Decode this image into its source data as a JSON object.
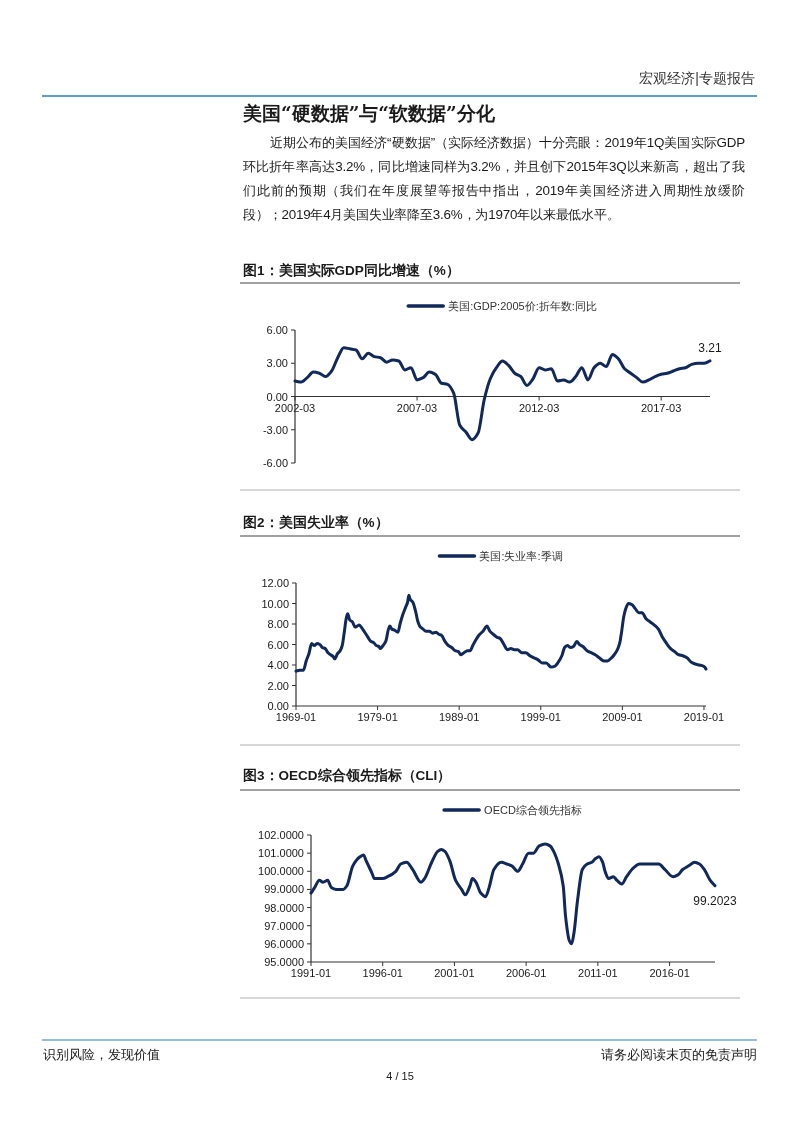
{
  "chart_data": [
    {
      "type": "line",
      "title": "图1：美国实际GDP同比增速（%）",
      "legend": "top",
      "annotations": [
        "宏观经济|专题报告",
        "美国“硬数据”与“软数据”分化",
        "近期公布的美国经济“硬数据”（实际经济数据）十分亮眼：2019年1Q美国实际GDP环比折年率高达3.2%，同比增速同样为3.2%，并且创下2015年3Q以来新高，超出了我们此前的预期（我们在年度展望等报告中指出，2019年美国经济进入周期性放缓阶段）；2019年4月美国失业率降至3.6%，为1970年以来最低水平。"
      ],
      "x": [
        "2002-03",
        "2002-06",
        "2002-09",
        "2002-12",
        "2003-03",
        "2003-06",
        "2003-09",
        "2003-12",
        "2004-03",
        "2004-06",
        "2004-09",
        "2004-12",
        "2005-03",
        "2005-06",
        "2005-09",
        "2005-12",
        "2006-03",
        "2006-06",
        "2006-09",
        "2006-12",
        "2007-03",
        "2007-06",
        "2007-09",
        "2007-12",
        "2008-03",
        "2008-06",
        "2008-09",
        "2008-12",
        "2009-03",
        "2009-06",
        "2009-09",
        "2009-12",
        "2010-03",
        "2010-06",
        "2010-09",
        "2010-12",
        "2011-03",
        "2011-06",
        "2011-09",
        "2011-12",
        "2012-03",
        "2012-06",
        "2012-09",
        "2012-12",
        "2013-03",
        "2013-06",
        "2013-09",
        "2013-12",
        "2014-03",
        "2014-06",
        "2014-09",
        "2014-12",
        "2015-03",
        "2015-06",
        "2015-09",
        "2015-12",
        "2016-03",
        "2016-06",
        "2016-09",
        "2016-12",
        "2017-03",
        "2017-06",
        "2017-09",
        "2017-12",
        "2018-03",
        "2018-06",
        "2018-09",
        "2018-12",
        "2019-03"
      ],
      "series": [
        {
          "name": "美国:GDP:2005价:折年数:同比",
          "color": "#10295a",
          "values": [
            1.4,
            1.3,
            1.7,
            2.2,
            2.1,
            1.8,
            2.3,
            3.5,
            4.4,
            4.3,
            4.2,
            3.4,
            3.9,
            3.6,
            3.5,
            3.1,
            3.3,
            3.2,
            2.4,
            2.6,
            1.5,
            1.7,
            2.2,
            2.0,
            1.2,
            1.1,
            0.3,
            -2.6,
            -3.2,
            -3.9,
            -3.3,
            -0.3,
            1.6,
            2.6,
            3.2,
            2.8,
            2.1,
            1.8,
            1.0,
            1.6,
            2.6,
            2.4,
            2.5,
            1.4,
            1.5,
            1.3,
            1.8,
            2.6,
            1.5,
            2.6,
            3.0,
            2.7,
            3.8,
            3.4,
            2.5,
            2.1,
            1.7,
            1.3,
            1.5,
            1.8,
            2.0,
            2.1,
            2.3,
            2.5,
            2.6,
            2.9,
            3.0,
            3.0,
            3.21
          ],
          "value_labels": [
            null,
            null,
            null,
            null,
            null,
            null,
            null,
            null,
            null,
            null,
            null,
            null,
            null,
            null,
            null,
            null,
            null,
            null,
            null,
            null,
            null,
            null,
            null,
            null,
            null,
            null,
            null,
            null,
            null,
            null,
            null,
            null,
            null,
            null,
            null,
            null,
            null,
            null,
            null,
            null,
            null,
            null,
            null,
            null,
            null,
            null,
            null,
            null,
            null,
            null,
            null,
            null,
            null,
            null,
            null,
            null,
            null,
            null,
            null,
            null,
            null,
            null,
            null,
            null,
            null,
            null,
            null,
            null,
            "3.21"
          ]
        }
      ],
      "xlim": [
        "2002-03",
        "2019-03"
      ],
      "xticks": [
        "2002-03",
        "2007-03",
        "2012-03",
        "2017-03"
      ],
      "ylim": [
        -6,
        6
      ],
      "yticks": [
        {
          "value": -6,
          "label": "-6.00"
        },
        {
          "value": -3,
          "label": "-3.00"
        },
        {
          "value": 0,
          "label": "0.00"
        },
        {
          "value": 3,
          "label": "3.00"
        },
        {
          "value": 6,
          "label": "6.00"
        }
      ]
    },
    {
      "type": "line",
      "title": "图2：美国失业率（%）",
      "legend": "top",
      "x": [
        "1969-01",
        "1969-06",
        "1969-12",
        "1970-04",
        "1970-08",
        "1970-12",
        "1971-04",
        "1971-08",
        "1971-12",
        "1972-04",
        "1972-08",
        "1972-12",
        "1973-04",
        "1973-08",
        "1973-10",
        "1974-02",
        "1974-06",
        "1974-09",
        "1974-12",
        "1975-03",
        "1975-05",
        "1975-08",
        "1975-12",
        "1976-04",
        "1976-07",
        "1976-10",
        "1977-02",
        "1977-06",
        "1977-10",
        "1978-03",
        "1978-07",
        "1978-11",
        "1979-03",
        "1979-05",
        "1979-09",
        "1980-01",
        "1980-05",
        "1980-07",
        "1980-10",
        "1981-02",
        "1981-07",
        "1981-10",
        "1982-02",
        "1982-06",
        "1982-09",
        "1982-11",
        "1983-01",
        "1983-05",
        "1983-09",
        "1983-12",
        "1984-04",
        "1984-08",
        "1984-12",
        "1985-05",
        "1985-10",
        "1986-03",
        "1986-07",
        "1986-11",
        "1987-04",
        "1987-09",
        "1988-02",
        "1988-07",
        "1988-12",
        "1989-03",
        "1989-08",
        "1990-01",
        "1990-05",
        "1990-09",
        "1991-01",
        "1991-06",
        "1991-12",
        "1992-06",
        "1992-10",
        "1993-03",
        "1993-09",
        "1994-01",
        "1994-06",
        "1994-12",
        "1995-05",
        "1995-10",
        "1996-03",
        "1996-09",
        "1997-03",
        "1997-09",
        "1998-03",
        "1998-09",
        "1999-03",
        "1999-09",
        "2000-04",
        "2000-10",
        "2001-03",
        "2001-08",
        "2001-12",
        "2002-04",
        "2002-09",
        "2003-01",
        "2003-06",
        "2003-10",
        "2004-03",
        "2004-09",
        "2005-03",
        "2005-09",
        "2006-03",
        "2006-10",
        "2007-03",
        "2007-09",
        "2008-01",
        "2008-05",
        "2008-09",
        "2008-12",
        "2009-03",
        "2009-06",
        "2009-10",
        "2010-03",
        "2010-08",
        "2011-01",
        "2011-06",
        "2011-12",
        "2012-06",
        "2012-12",
        "2013-06",
        "2013-12",
        "2014-06",
        "2014-12",
        "2015-06",
        "2015-12",
        "2016-06",
        "2016-12",
        "2017-06",
        "2017-12",
        "2018-06",
        "2018-12",
        "2019-02",
        "2019-04"
      ],
      "series": [
        {
          "name": "美国:失业率:季调",
          "color": "#10295a",
          "values": [
            3.4,
            3.5,
            3.5,
            4.4,
            5.1,
            6.1,
            5.9,
            6.1,
            6.0,
            5.7,
            5.6,
            5.2,
            5.0,
            4.8,
            4.6,
            5.1,
            5.4,
            5.9,
            7.2,
            8.6,
            9.0,
            8.4,
            8.2,
            7.7,
            7.8,
            7.9,
            7.6,
            7.2,
            6.8,
            6.3,
            6.2,
            5.9,
            5.8,
            5.6,
            5.9,
            6.3,
            7.5,
            7.8,
            7.5,
            7.4,
            7.2,
            8.0,
            8.9,
            9.6,
            10.1,
            10.8,
            10.4,
            10.1,
            9.2,
            8.3,
            7.7,
            7.5,
            7.3,
            7.3,
            7.1,
            7.2,
            7.0,
            6.9,
            6.3,
            5.9,
            5.7,
            5.4,
            5.3,
            5.0,
            5.2,
            5.4,
            5.4,
            5.9,
            6.4,
            6.9,
            7.3,
            7.8,
            7.3,
            7.0,
            6.7,
            6.6,
            6.1,
            5.5,
            5.6,
            5.5,
            5.5,
            5.2,
            5.2,
            4.9,
            4.7,
            4.5,
            4.2,
            4.2,
            3.8,
            3.9,
            4.3,
            4.9,
            5.7,
            5.9,
            5.7,
            5.8,
            6.3,
            6.0,
            5.8,
            5.4,
            5.2,
            5.0,
            4.7,
            4.4,
            4.4,
            4.7,
            5.0,
            5.4,
            6.1,
            7.3,
            8.7,
            9.5,
            10.0,
            9.9,
            9.5,
            9.1,
            9.1,
            8.5,
            8.2,
            7.9,
            7.5,
            6.7,
            6.1,
            5.6,
            5.3,
            5.0,
            4.9,
            4.7,
            4.3,
            4.1,
            4.0,
            3.9,
            3.8,
            3.6
          ]
        }
      ],
      "xlim": [
        "1969-01",
        "2019-04"
      ],
      "xticks": [
        "1969-01",
        "1979-01",
        "1989-01",
        "1999-01",
        "2009-01",
        "2019-01"
      ],
      "ylim": [
        0,
        12
      ],
      "yticks": [
        {
          "value": 0,
          "label": "0.00"
        },
        {
          "value": 2,
          "label": "2.00"
        },
        {
          "value": 4,
          "label": "4.00"
        },
        {
          "value": 6,
          "label": "6.00"
        },
        {
          "value": 8,
          "label": "8.00"
        },
        {
          "value": 10,
          "label": "10.00"
        },
        {
          "value": 12,
          "label": "12.00"
        }
      ]
    },
    {
      "type": "line",
      "title": "图3：OECD综合领先指标（CLI）",
      "legend": "top",
      "annotations": [
        "识别风险，发现价值",
        "请务必阅读末页的免责声明",
        "4 / 15"
      ],
      "x": [
        "1991-01",
        "1991-04",
        "1991-08",
        "1991-11",
        "1992-03",
        "1992-06",
        "1992-10",
        "1993-04",
        "1993-07",
        "1993-12",
        "1994-06",
        "1994-09",
        "1994-11",
        "1995-04",
        "1995-06",
        "1996-01",
        "1996-05",
        "1996-12",
        "1997-04",
        "1997-09",
        "1998-02",
        "1998-09",
        "1998-12",
        "1999-06",
        "1999-11",
        "2000-02",
        "2000-05",
        "2000-09",
        "2001-02",
        "2001-07",
        "2001-10",
        "2002-02",
        "2002-04",
        "2002-07",
        "2002-11",
        "2003-03",
        "2003-06",
        "2003-10",
        "2004-04",
        "2004-09",
        "2005-01",
        "2005-06",
        "2005-10",
        "2006-03",
        "2006-07",
        "2006-12",
        "2007-05",
        "2007-09",
        "2007-12",
        "2008-04",
        "2008-08",
        "2008-10",
        "2009-01",
        "2009-03",
        "2009-05",
        "2009-08",
        "2009-12",
        "2010-04",
        "2010-08",
        "2010-11",
        "2011-02",
        "2011-05",
        "2011-07",
        "2011-10",
        "2012-02",
        "2012-05",
        "2012-09",
        "2013-01",
        "2013-07",
        "2013-12",
        "2014-07",
        "2015-04",
        "2015-09",
        "2016-04",
        "2016-08",
        "2016-12",
        "2017-05",
        "2017-10",
        "2018-02",
        "2018-06",
        "2018-11",
        "2019-03"
      ],
      "series": [
        {
          "name": "OECD综合领先指标",
          "color": "#10295a",
          "values": [
            98.8,
            99.1,
            99.5,
            99.4,
            99.5,
            99.1,
            99.0,
            99.0,
            99.2,
            100.3,
            100.8,
            100.9,
            100.6,
            99.9,
            99.6,
            99.6,
            99.7,
            100.0,
            100.4,
            100.5,
            100.1,
            99.4,
            99.6,
            100.5,
            101.1,
            101.2,
            101.1,
            100.6,
            99.5,
            99.0,
            98.7,
            99.2,
            99.6,
            99.4,
            98.8,
            98.6,
            99.1,
            100.1,
            100.5,
            100.4,
            100.3,
            100.0,
            100.4,
            101.0,
            101.0,
            101.4,
            101.5,
            101.4,
            101.1,
            100.4,
            99.2,
            97.5,
            96.2,
            96.0,
            96.6,
            98.4,
            100.1,
            100.4,
            100.5,
            100.7,
            100.8,
            100.5,
            100.0,
            99.6,
            99.7,
            99.5,
            99.3,
            99.7,
            100.2,
            100.4,
            100.4,
            100.4,
            100.1,
            99.7,
            99.8,
            100.1,
            100.3,
            100.5,
            100.4,
            100.1,
            99.5,
            99.2023
          ],
          "value_labels": [
            null,
            null,
            null,
            null,
            null,
            null,
            null,
            null,
            null,
            null,
            null,
            null,
            null,
            null,
            null,
            null,
            null,
            null,
            null,
            null,
            null,
            null,
            null,
            null,
            null,
            null,
            null,
            null,
            null,
            null,
            null,
            null,
            null,
            null,
            null,
            null,
            null,
            null,
            null,
            null,
            null,
            null,
            null,
            null,
            null,
            null,
            null,
            null,
            null,
            null,
            null,
            null,
            null,
            null,
            null,
            null,
            null,
            null,
            null,
            null,
            null,
            null,
            null,
            null,
            null,
            null,
            null,
            null,
            null,
            null,
            null,
            null,
            null,
            null,
            null,
            null,
            null,
            null,
            null,
            null,
            null,
            "99.2023"
          ]
        }
      ],
      "xlim": [
        "1991-01",
        "2019-03"
      ],
      "xticks": [
        "1991-01",
        "1996-01",
        "2001-01",
        "2006-01",
        "2011-01",
        "2016-01"
      ],
      "ylim": [
        95,
        102
      ],
      "yticks": [
        {
          "value": 95,
          "label": "95.0000"
        },
        {
          "value": 96,
          "label": "96.0000"
        },
        {
          "value": 97,
          "label": "97.0000"
        },
        {
          "value": 98,
          "label": "98.0000"
        },
        {
          "value": 99,
          "label": "99.0000"
        },
        {
          "value": 100,
          "label": "100.0000"
        },
        {
          "value": 101,
          "label": "101.0000"
        },
        {
          "value": 102,
          "label": "102.0000"
        }
      ]
    }
  ]
}
